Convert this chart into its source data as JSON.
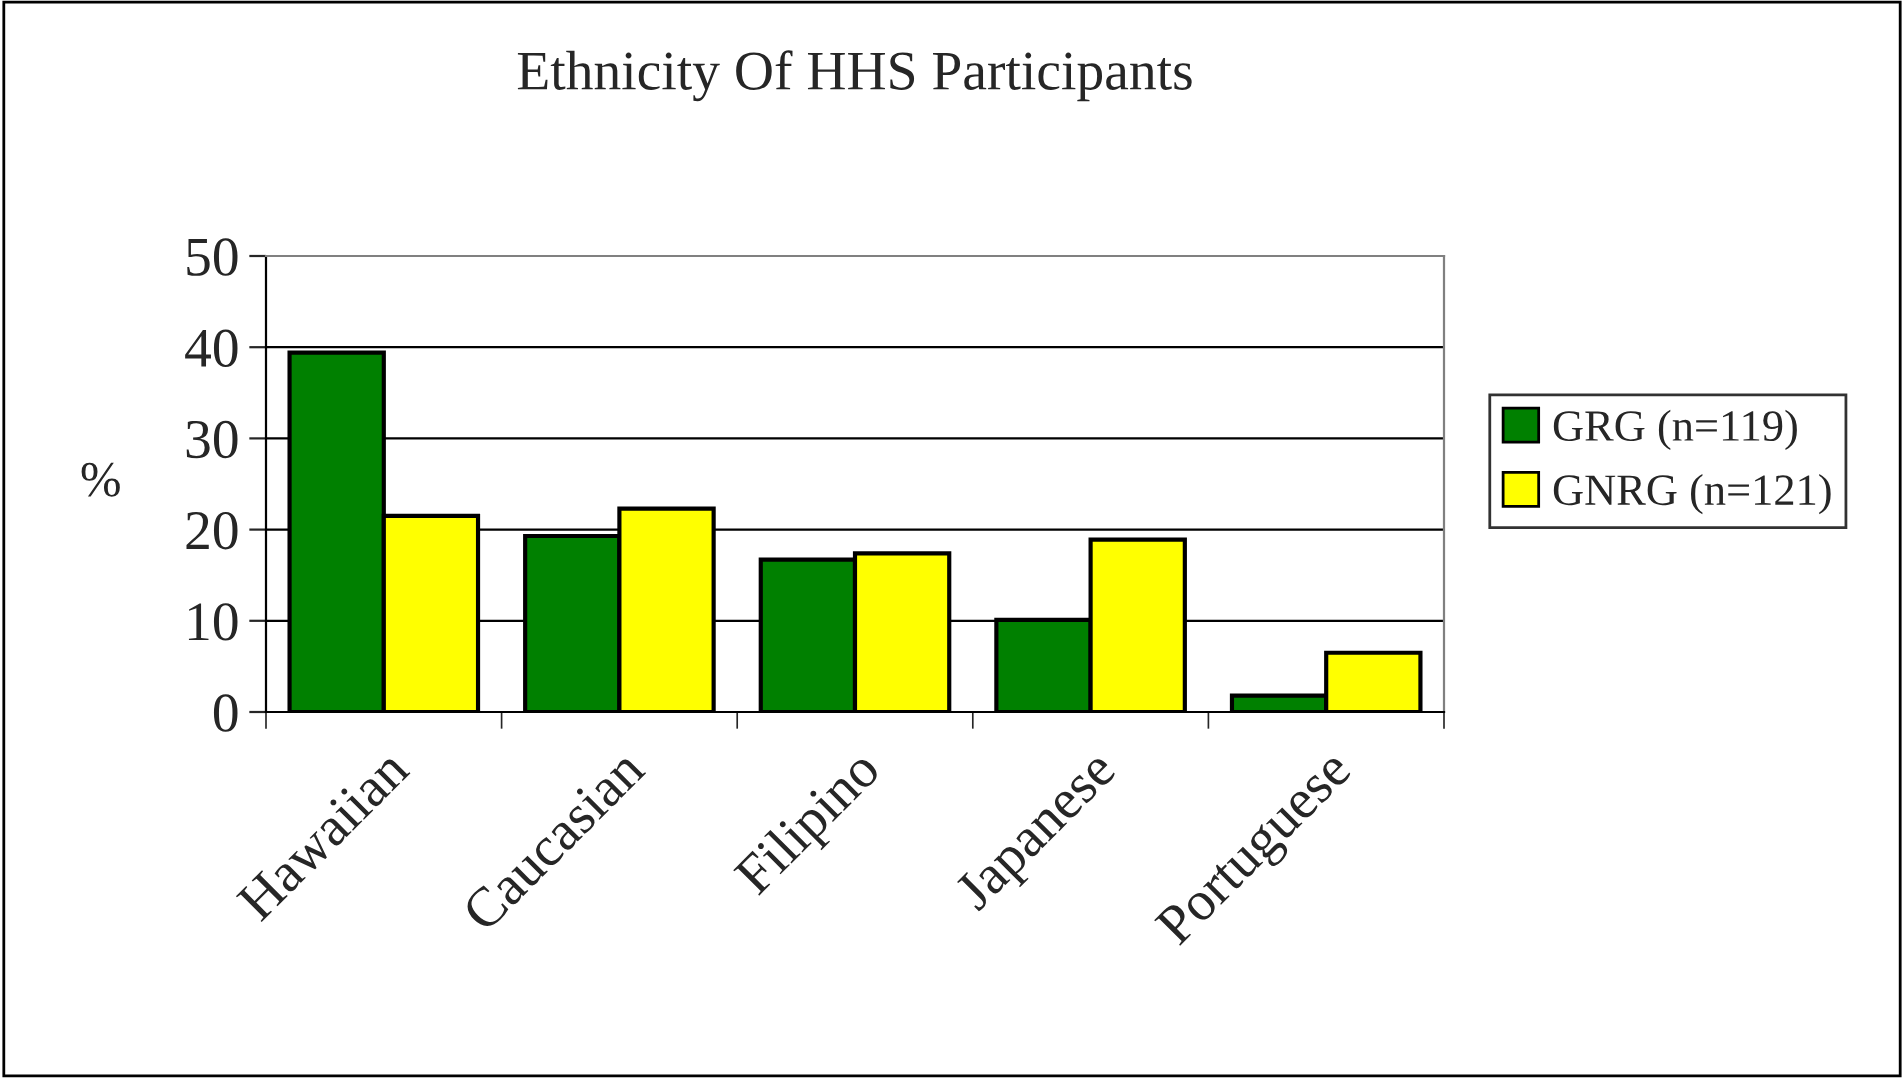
{
  "chart_data": {
    "type": "bar",
    "title": "Ethnicity Of HHS Participants",
    "ylabel": "%",
    "categories": [
      "Hawaiian",
      "Caucasian",
      "Filipino",
      "Japanese",
      "Portuguese"
    ],
    "series": [
      {
        "name": "GRG (n=119)",
        "color": "#008000",
        "values": [
          39.4,
          19.3,
          16.7,
          10.1,
          1.8
        ]
      },
      {
        "name": "GNRG (n=121)",
        "color": "#ffff00",
        "values": [
          21.5,
          22.3,
          17.4,
          18.9,
          6.5
        ]
      }
    ],
    "ylim": [
      0,
      50
    ],
    "yticks": [
      0,
      10,
      20,
      30,
      40,
      50
    ],
    "grid": "y",
    "legend": "right"
  }
}
